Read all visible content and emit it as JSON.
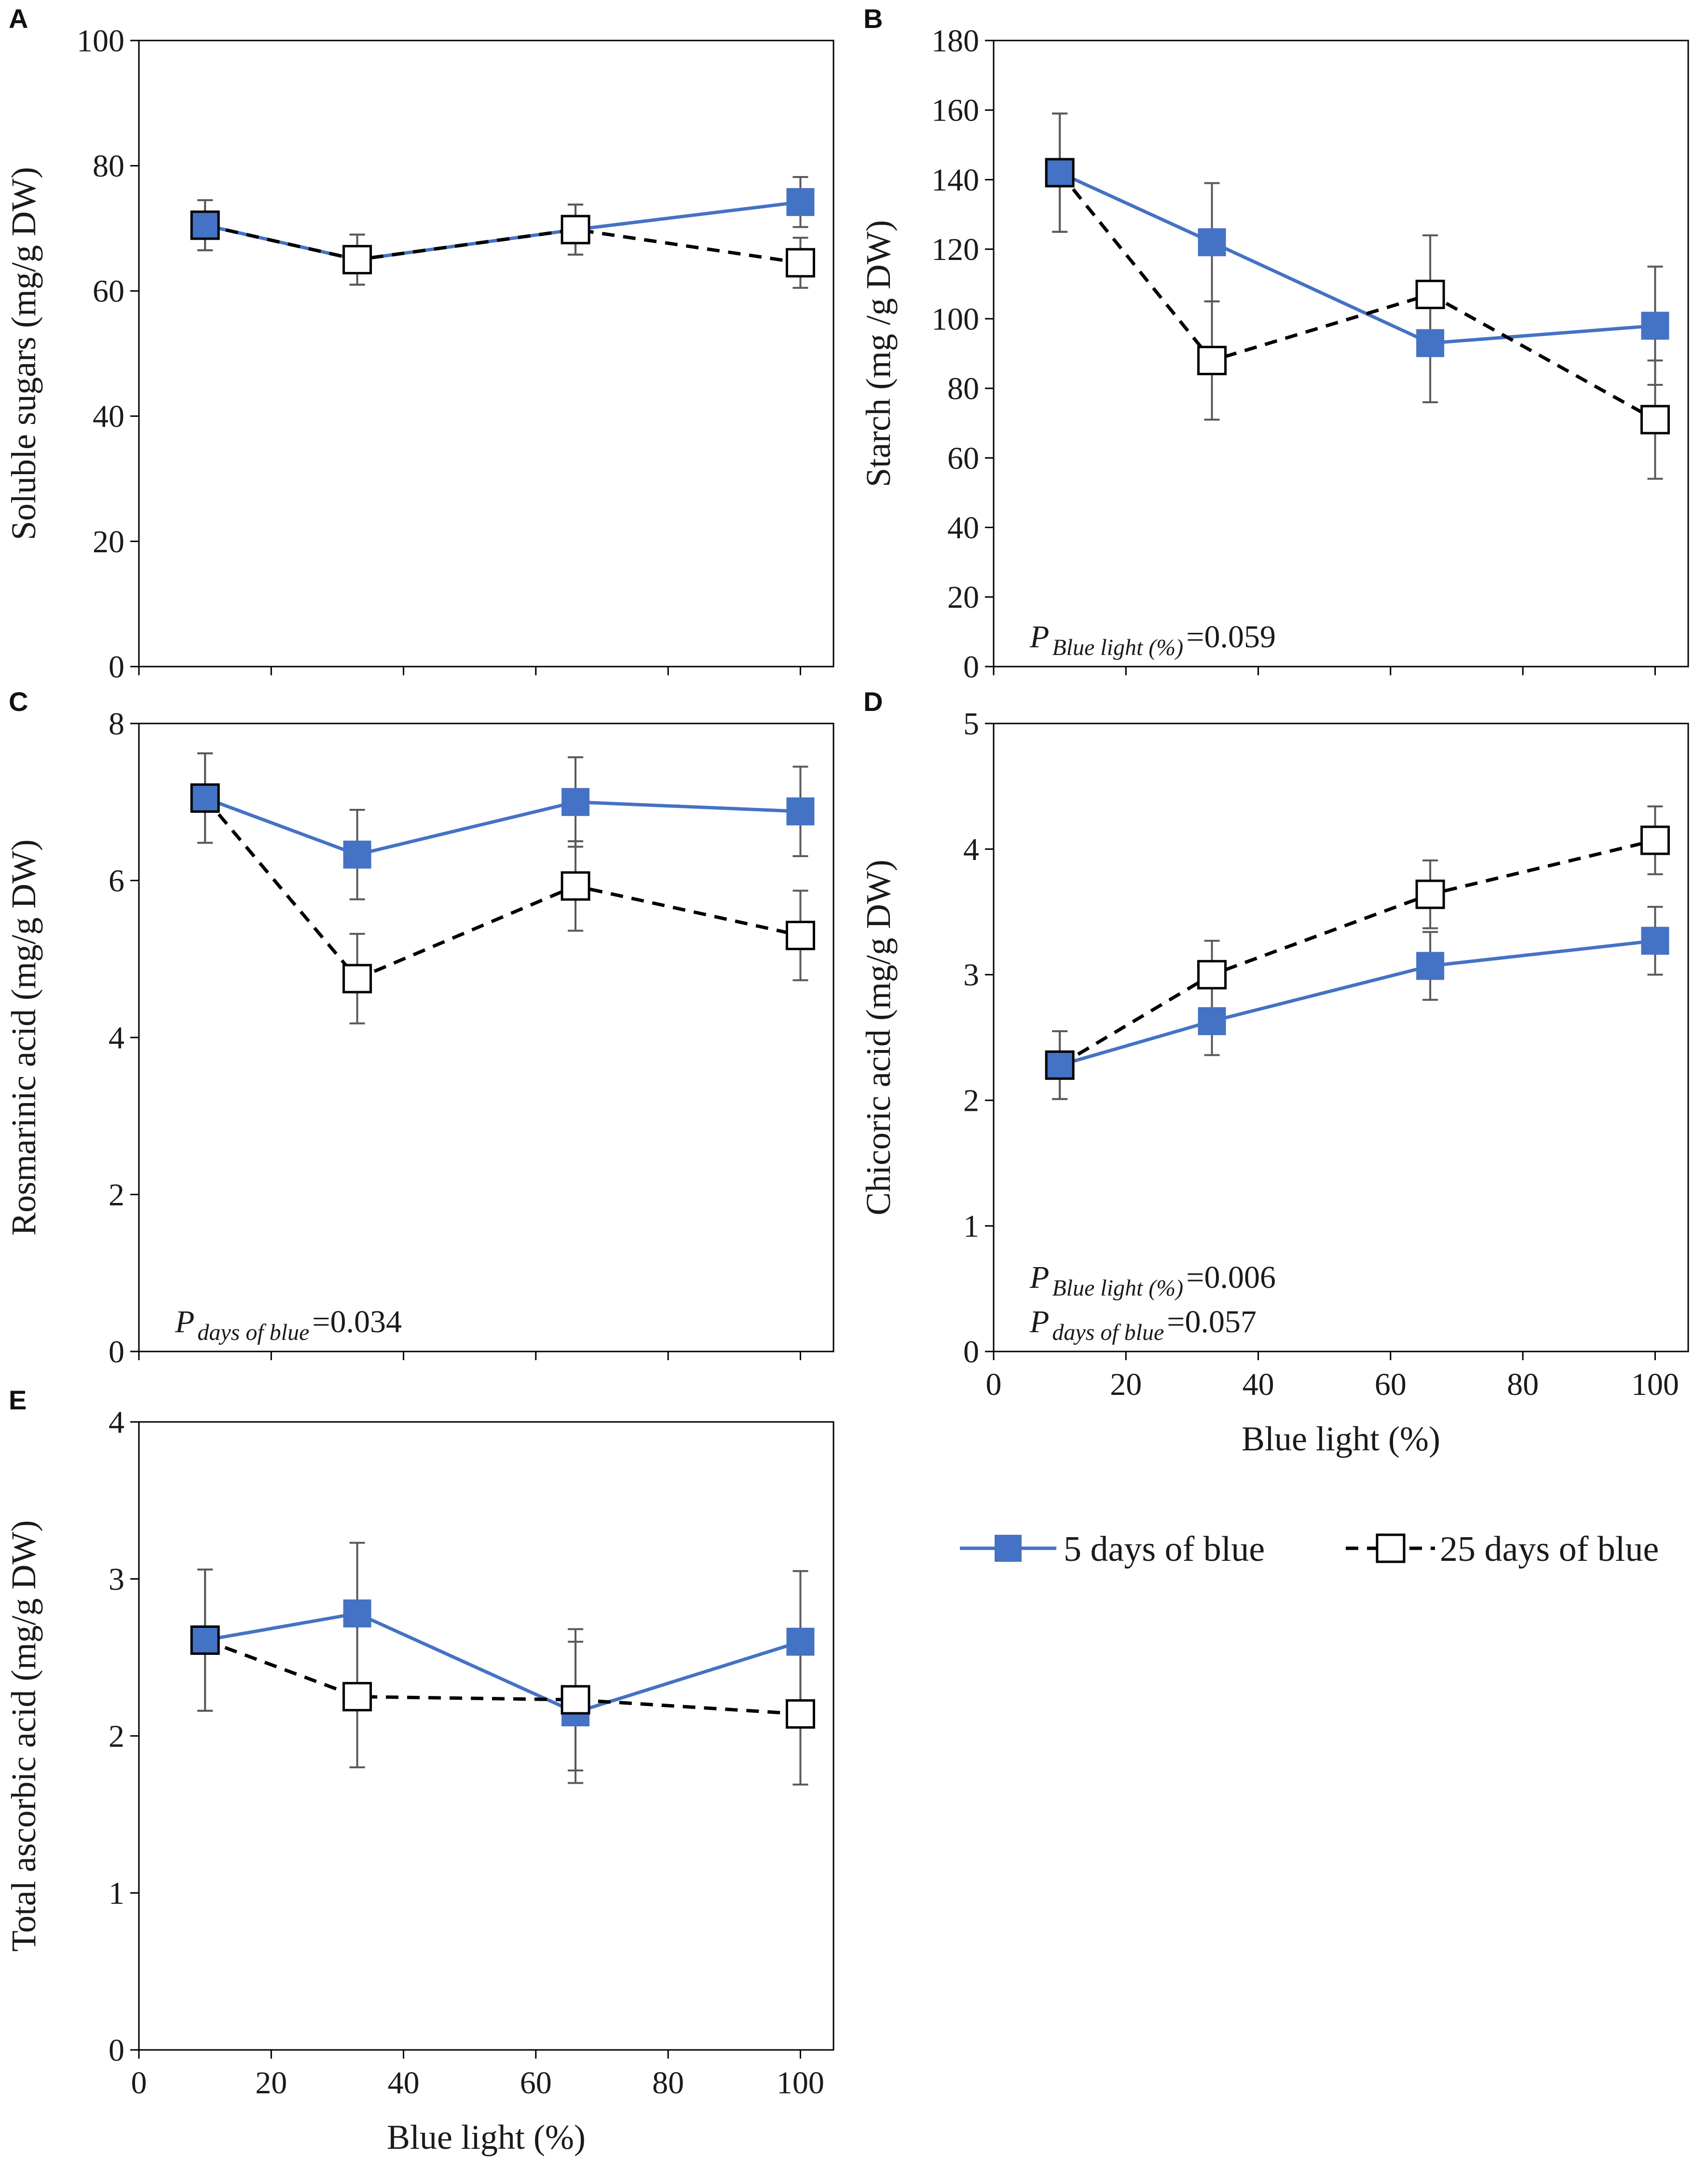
{
  "colors": {
    "series5": "#4472c4",
    "series25": "#000000",
    "errorbar": "#595959",
    "axis": "#000000"
  },
  "legend": {
    "series5_label": "5 days of blue",
    "series25_label": "25 days of blue"
  },
  "chart_data": [
    {
      "id": "A",
      "panel_label": "A",
      "type": "line",
      "ylabel": "Soluble sugars (mg/g DW)",
      "xlabel": "",
      "ylim": [
        0,
        100
      ],
      "yticks": [
        0,
        20,
        40,
        60,
        80,
        100
      ],
      "xlim": [
        0,
        105
      ],
      "xticks": [
        0,
        20,
        40,
        60,
        80,
        100
      ],
      "x_tick_labels_shown": false,
      "series": [
        {
          "name": "5 days of blue",
          "x": [
            10,
            33,
            66,
            100
          ],
          "values": [
            70.5,
            65,
            69.8,
            74.2
          ],
          "errors": [
            4,
            4,
            4,
            4
          ]
        },
        {
          "name": "25 days of blue",
          "x": [
            10,
            33,
            66,
            100
          ],
          "values": [
            70.5,
            65,
            69.8,
            64.5
          ],
          "errors": [
            4,
            4,
            4,
            4
          ]
        }
      ],
      "annotations": []
    },
    {
      "id": "B",
      "panel_label": "B",
      "type": "line",
      "ylabel": "Starch (mg /g DW)",
      "xlabel": "",
      "ylim": [
        0,
        180
      ],
      "yticks": [
        0,
        20,
        40,
        60,
        80,
        100,
        120,
        140,
        160,
        180
      ],
      "xlim": [
        0,
        105
      ],
      "xticks": [
        0,
        20,
        40,
        60,
        80,
        100
      ],
      "x_tick_labels_shown": false,
      "series": [
        {
          "name": "5 days of blue",
          "x": [
            10,
            33,
            66,
            100
          ],
          "values": [
            142,
            122,
            93,
            98
          ],
          "errors": [
            17,
            17,
            17,
            17
          ]
        },
        {
          "name": "25 days of blue",
          "x": [
            10,
            33,
            66,
            100
          ],
          "values": [
            142,
            88,
            107,
            71
          ],
          "errors": [
            17,
            17,
            17,
            17
          ]
        }
      ],
      "annotations": [
        {
          "p": "P",
          "sub": "Blue light (%)",
          "val": "=0.059"
        }
      ]
    },
    {
      "id": "C",
      "panel_label": "C",
      "type": "line",
      "ylabel": "Rosmarinic acid (mg/g DW)",
      "xlabel": "",
      "ylim": [
        0,
        8
      ],
      "yticks": [
        0,
        2,
        4,
        6,
        8
      ],
      "xlim": [
        0,
        105
      ],
      "xticks": [
        0,
        20,
        40,
        60,
        80,
        100
      ],
      "x_tick_labels_shown": false,
      "series": [
        {
          "name": "5 days of blue",
          "x": [
            10,
            33,
            66,
            100
          ],
          "values": [
            7.05,
            6.33,
            7.0,
            6.88
          ],
          "errors": [
            0.57,
            0.57,
            0.57,
            0.57
          ]
        },
        {
          "name": "25 days of blue",
          "x": [
            10,
            33,
            66,
            100
          ],
          "values": [
            7.05,
            4.75,
            5.93,
            5.3
          ],
          "errors": [
            0.57,
            0.57,
            0.57,
            0.57
          ]
        }
      ],
      "annotations": [
        {
          "p": "P",
          "sub": "days of blue",
          "val": "=0.034"
        }
      ]
    },
    {
      "id": "D",
      "panel_label": "D",
      "type": "line",
      "ylabel": "Chicoric acid (mg/g DW)",
      "xlabel": "Blue light (%)",
      "ylim": [
        0,
        5
      ],
      "yticks": [
        0,
        1,
        2,
        3,
        4,
        5
      ],
      "xlim": [
        0,
        105
      ],
      "xticks": [
        0,
        20,
        40,
        60,
        80,
        100
      ],
      "x_tick_labels_shown": true,
      "series": [
        {
          "name": "5 days of blue",
          "x": [
            10,
            33,
            66,
            100
          ],
          "values": [
            2.28,
            2.63,
            3.07,
            3.27
          ],
          "errors": [
            0.27,
            0.27,
            0.27,
            0.27
          ]
        },
        {
          "name": "25 days of blue",
          "x": [
            10,
            33,
            66,
            100
          ],
          "values": [
            2.28,
            3.0,
            3.64,
            4.07
          ],
          "errors": [
            0.27,
            0.27,
            0.27,
            0.27
          ]
        }
      ],
      "annotations": [
        {
          "p": "P",
          "sub": "Blue light (%)",
          "val": "=0.006"
        },
        {
          "p": "P",
          "sub": "days of blue",
          "val": "=0.057"
        }
      ]
    },
    {
      "id": "E",
      "panel_label": "E",
      "type": "line",
      "ylabel": "Total ascorbic acid (mg/g DW)",
      "xlabel": "Blue light (%)",
      "ylim": [
        0,
        4
      ],
      "yticks": [
        0,
        1,
        2,
        3,
        4
      ],
      "xlim": [
        0,
        105
      ],
      "xticks": [
        0,
        20,
        40,
        60,
        80,
        100
      ],
      "x_tick_labels_shown": true,
      "series": [
        {
          "name": "5 days of blue",
          "x": [
            10,
            33,
            66,
            100
          ],
          "values": [
            2.61,
            2.78,
            2.15,
            2.6
          ],
          "errors": [
            0.45,
            0.45,
            0.45,
            0.45
          ]
        },
        {
          "name": "25 days of blue",
          "x": [
            10,
            33,
            66,
            100
          ],
          "values": [
            2.61,
            2.25,
            2.23,
            2.14
          ],
          "errors": [
            0.45,
            0.45,
            0.45,
            0.45
          ]
        }
      ],
      "annotations": []
    }
  ]
}
